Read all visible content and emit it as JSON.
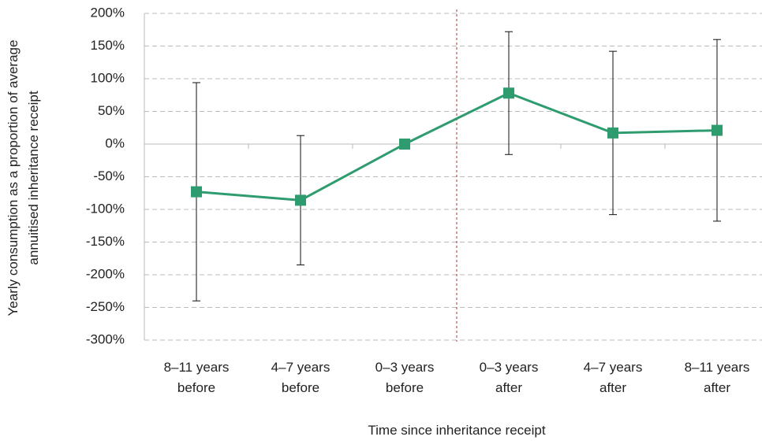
{
  "chart_data": {
    "type": "line",
    "categories": [
      "8–11 years before",
      "4–7 years before",
      "0–3 years before",
      "0–3 years after",
      "4–7 years after",
      "8–11 years after"
    ],
    "values": [
      -73,
      -86,
      0,
      78,
      17,
      21
    ],
    "errors": [
      167,
      99,
      null,
      94,
      125,
      139
    ],
    "color": "#2e9c6e",
    "x_label": "Time since inheritance receipt",
    "y_label": "Yearly consumption as a proportion of average annuitised inheritance receipt",
    "ylim": [
      -300,
      200
    ],
    "yticks": [
      {
        "value": -300,
        "label": "-300%"
      },
      {
        "value": -250,
        "label": "-250%"
      },
      {
        "value": -200,
        "label": "-200%"
      },
      {
        "value": -150,
        "label": "-150%"
      },
      {
        "value": -100,
        "label": "-100%"
      },
      {
        "value": -50,
        "label": "-50%"
      },
      {
        "value": 0,
        "label": "0%"
      },
      {
        "value": 50,
        "label": "50%"
      },
      {
        "value": 100,
        "label": "100%"
      },
      {
        "value": 150,
        "label": "150%"
      },
      {
        "value": 200,
        "label": "200%"
      }
    ],
    "grid": true
  }
}
